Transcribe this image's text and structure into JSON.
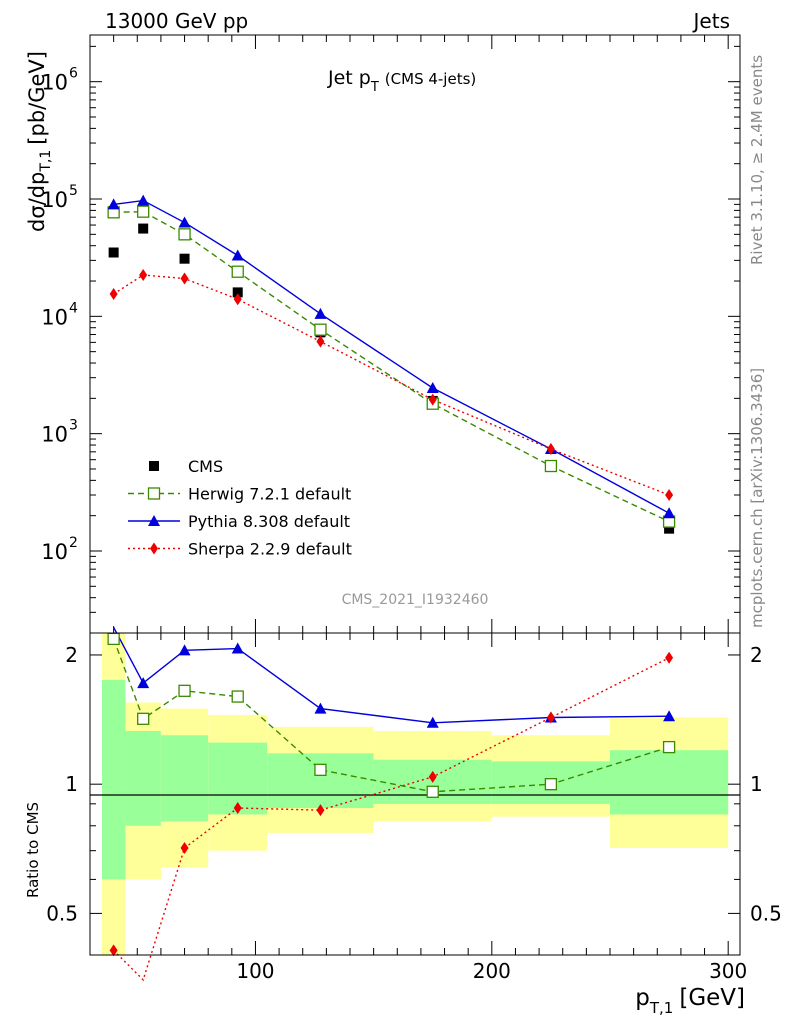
{
  "header": {
    "energy": "13000 GeV pp",
    "category": "Jets"
  },
  "side": {
    "rivet": "Rivet 3.1.10, ≥ 2.4M events",
    "mcplots": "mcplots.cern.ch [arXiv:1306.3436]"
  },
  "chart_data": {
    "type": "line",
    "title": "Jet p",
    "title_sub": "T",
    "title_extra": "(CMS 4-jets)",
    "analysis_id": "CMS_2021_I1932460",
    "ylabel": "dσ/dp",
    "ylabel_sub": "T,1",
    "ylabel_unit": "[pb/GeV]",
    "xlabel": "p",
    "xlabel_sub": "T,1",
    "xlabel_unit": "[GeV]",
    "ratio_ylabel": "Ratio to CMS",
    "xlim": [
      30,
      305
    ],
    "ylim": [
      20,
      2500000
    ],
    "yscale": "log",
    "ratio_ylim": [
      0.4,
      2.25
    ],
    "ratio_yscale": "log",
    "x_ticks": [
      "100",
      "200",
      "300"
    ],
    "y_ticks": [
      "10",
      "10",
      "10",
      "10",
      "10"
    ],
    "y_tick_exps": [
      "2",
      "3",
      "4",
      "5",
      "6"
    ],
    "ratio_ticks": [
      "0.5",
      "1",
      "2"
    ],
    "x": [
      40,
      52.5,
      70,
      92.5,
      127.5,
      175,
      225,
      275
    ],
    "series": [
      {
        "name": "CMS",
        "color": "#000000",
        "marker": "square-filled",
        "values": [
          35000,
          56000,
          31000,
          16000,
          7300,
          1900,
          530,
          155
        ]
      },
      {
        "name": "Herwig 7.2.1 default",
        "color": "#3a8a00",
        "marker": "square-open",
        "dash": "6,4",
        "values": [
          77000,
          78000,
          50000,
          24000,
          7700,
          1800,
          530,
          178
        ],
        "ratio": [
          2.18,
          1.42,
          1.65,
          1.6,
          1.08,
          0.96,
          1.0,
          1.22
        ]
      },
      {
        "name": "Pythia 8.308 default",
        "color": "#0000dd",
        "marker": "triangle",
        "dash": "",
        "values": [
          90000,
          97000,
          63000,
          33000,
          10500,
          2450,
          740,
          210
        ],
        "ratio": [
          2.32,
          1.72,
          2.05,
          2.07,
          1.5,
          1.39,
          1.43,
          1.44
        ]
      },
      {
        "name": "Sherpa 2.2.9 default",
        "color": "#ee0000",
        "marker": "diamond",
        "dash": "2,3",
        "values": [
          15500,
          22500,
          21000,
          14000,
          6100,
          1950,
          740,
          300
        ],
        "ratio": [
          0.41,
          0.35,
          0.71,
          0.88,
          0.87,
          1.04,
          1.43,
          1.97
        ]
      }
    ],
    "bands": [
      {
        "x0": 33,
        "x1": 45,
        "yellow": [
          0.4,
          2.3
        ],
        "green": [
          0.6,
          1.75
        ]
      },
      {
        "x0": 45,
        "x1": 60,
        "yellow": [
          0.6,
          1.55
        ],
        "green": [
          0.8,
          1.33
        ]
      },
      {
        "x0": 60,
        "x1": 80,
        "yellow": [
          0.64,
          1.5
        ],
        "green": [
          0.82,
          1.3
        ]
      },
      {
        "x0": 80,
        "x1": 105,
        "yellow": [
          0.7,
          1.45
        ],
        "green": [
          0.85,
          1.25
        ]
      },
      {
        "x0": 105,
        "x1": 150,
        "yellow": [
          0.77,
          1.36
        ],
        "green": [
          0.88,
          1.18
        ]
      },
      {
        "x0": 150,
        "x1": 200,
        "yellow": [
          0.82,
          1.33
        ],
        "green": [
          0.9,
          1.14
        ]
      },
      {
        "x0": 200,
        "x1": 250,
        "yellow": [
          0.84,
          1.3
        ],
        "green": [
          0.9,
          1.13
        ]
      },
      {
        "x0": 250,
        "x1": 300,
        "yellow": [
          0.71,
          1.43
        ],
        "green": [
          0.85,
          1.2
        ]
      }
    ]
  }
}
